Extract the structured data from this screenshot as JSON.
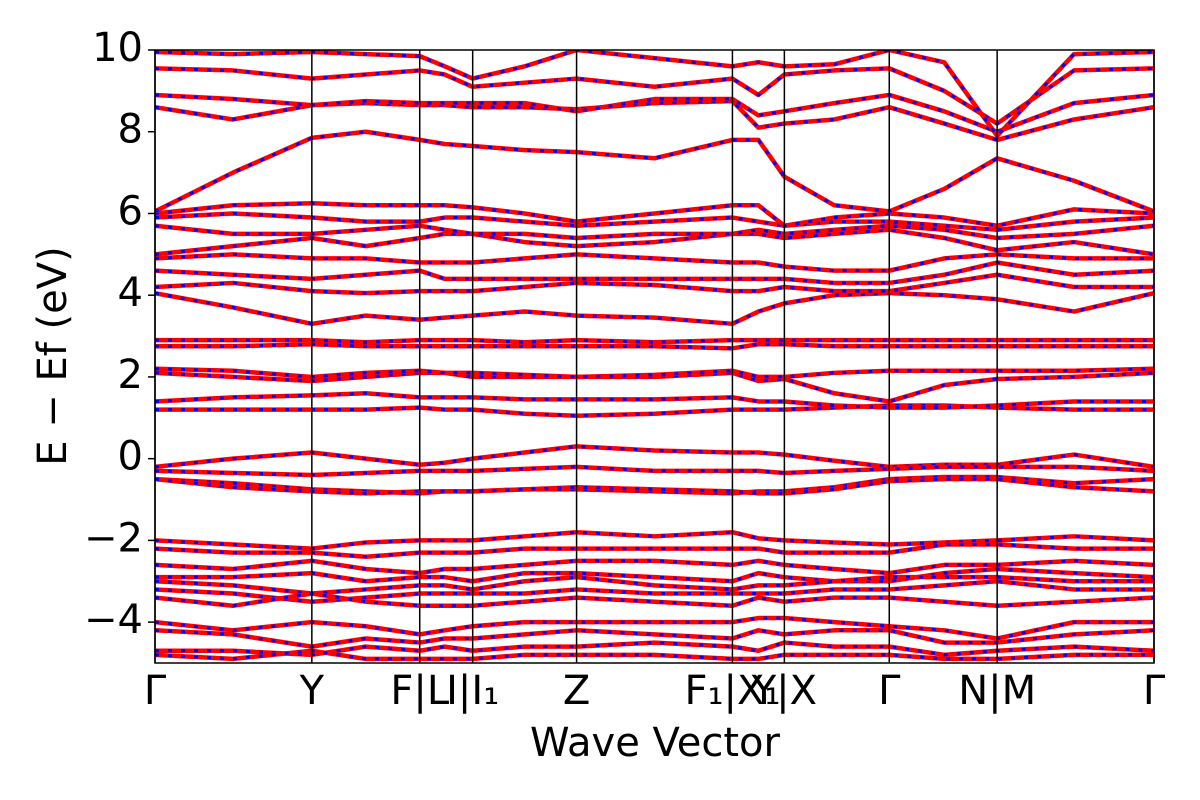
{
  "chart_data": {
    "type": "line",
    "xlabel": "Wave Vector",
    "ylabel": "E − Ef (eV)",
    "xlim": [
      0,
      1
    ],
    "ylim": [
      -5,
      10
    ],
    "xticks": [
      {
        "value": 0,
        "label": "Γ"
      },
      {
        "value": 0.157,
        "label": "Y"
      },
      {
        "value": 0.265,
        "label": "F|L"
      },
      {
        "value": 0.318,
        "label": "I|I₁"
      },
      {
        "value": 0.422,
        "label": "Z"
      },
      {
        "value": 0.578,
        "label": "F₁|X₁"
      },
      {
        "value": 0.63,
        "label": "Y|X"
      },
      {
        "value": 0.735,
        "label": "Γ"
      },
      {
        "value": 0.843,
        "label": "N|M"
      },
      {
        "value": 1,
        "label": "Γ"
      }
    ],
    "yticks": [
      {
        "value": -4,
        "label": "−4"
      },
      {
        "value": -2,
        "label": "−2"
      },
      0,
      2,
      4,
      6,
      8,
      10
    ],
    "line_color": "#ff0000",
    "overlay_color": "#0000ff",
    "x": [
      0,
      0.078,
      0.157,
      0.211,
      0.265,
      0.29,
      0.318,
      0.37,
      0.422,
      0.5,
      0.578,
      0.604,
      0.63,
      0.68,
      0.735,
      0.79,
      0.843,
      0.92,
      1
    ],
    "series": [
      {
        "values": [
          1.2,
          1.2,
          1.2,
          1.2,
          1.25,
          1.2,
          1.2,
          1.1,
          1.05,
          1.1,
          1.2,
          1.2,
          1.2,
          1.25,
          1.3,
          1.3,
          1.25,
          1.2,
          1.2
        ]
      },
      {
        "values": [
          1.4,
          1.5,
          1.55,
          1.6,
          1.5,
          1.5,
          1.5,
          1.45,
          1.45,
          1.45,
          1.5,
          1.4,
          1.4,
          1.3,
          1.25,
          1.25,
          1.3,
          1.4,
          1.4
        ]
      },
      {
        "values": [
          2.1,
          2,
          1.9,
          2,
          2.1,
          2.1,
          2,
          2,
          2,
          2,
          2.1,
          1.9,
          1.95,
          1.6,
          1.4,
          1.8,
          1.95,
          2,
          2.1
        ]
      },
      {
        "values": [
          2.2,
          2.15,
          2,
          2.1,
          2.15,
          2.1,
          2.1,
          2.05,
          2,
          2.05,
          2.15,
          2,
          2,
          2.1,
          2.15,
          2.15,
          2.15,
          2.15,
          2.2
        ]
      },
      {
        "values": [
          2.75,
          2.75,
          2.8,
          2.75,
          2.75,
          2.75,
          2.75,
          2.75,
          2.75,
          2.75,
          2.7,
          2.8,
          2.8,
          2.75,
          2.75,
          2.75,
          2.75,
          2.75,
          2.75
        ]
      },
      {
        "values": [
          2.9,
          2.9,
          2.9,
          2.85,
          2.9,
          2.9,
          2.9,
          2.85,
          2.9,
          2.85,
          2.9,
          2.9,
          2.9,
          2.9,
          2.9,
          2.9,
          2.9,
          2.9,
          2.9
        ]
      },
      {
        "values": [
          4.05,
          3.7,
          3.3,
          3.5,
          3.4,
          3.45,
          3.5,
          3.6,
          3.5,
          3.45,
          3.3,
          3.6,
          3.8,
          4,
          4.05,
          4,
          3.9,
          3.6,
          4.05
        ]
      },
      {
        "values": [
          4.2,
          4.3,
          4.1,
          4.05,
          4.1,
          4.1,
          4.1,
          4.2,
          4.3,
          4.25,
          4.1,
          4.1,
          4.2,
          4.1,
          4.1,
          4.3,
          4.5,
          4.2,
          4.2
        ]
      },
      {
        "values": [
          4.6,
          4.5,
          4.4,
          4.5,
          4.6,
          4.4,
          4.4,
          4.4,
          4.4,
          4.4,
          4.4,
          4.4,
          4.4,
          4.3,
          4.3,
          4.5,
          4.8,
          4.5,
          4.6
        ]
      },
      {
        "values": [
          4.9,
          5,
          4.9,
          4.9,
          4.8,
          4.8,
          4.8,
          4.9,
          5,
          4.9,
          4.8,
          4.8,
          4.7,
          4.6,
          4.6,
          4.9,
          5,
          4.9,
          4.9
        ]
      },
      {
        "values": [
          5,
          5.2,
          5.4,
          5.2,
          5.4,
          5.5,
          5.5,
          5.3,
          5.2,
          5.3,
          5.5,
          5.5,
          5.4,
          5.5,
          5.6,
          5.4,
          5.1,
          5.3,
          5
        ]
      },
      {
        "values": [
          5.7,
          5.5,
          5.5,
          5.6,
          5.7,
          5.6,
          5.5,
          5.5,
          5.4,
          5.5,
          5.5,
          5.6,
          5.5,
          5.6,
          5.7,
          5.6,
          5.4,
          5.5,
          5.7
        ]
      },
      {
        "values": [
          5.9,
          6,
          5.9,
          5.8,
          5.8,
          5.9,
          5.9,
          5.8,
          5.7,
          5.8,
          5.9,
          5.8,
          5.7,
          5.8,
          5.8,
          5.7,
          5.6,
          5.8,
          5.9
        ]
      },
      {
        "values": [
          6,
          6.2,
          6.25,
          6.2,
          6.2,
          6.2,
          6.15,
          6,
          5.8,
          6,
          6.2,
          6.2,
          5.7,
          5.9,
          6,
          5.9,
          5.7,
          6.1,
          6
        ]
      },
      {
        "values": [
          6.05,
          7,
          7.85,
          8,
          7.8,
          7.7,
          7.65,
          7.55,
          7.5,
          7.35,
          7.8,
          7.8,
          6.9,
          6.2,
          6.05,
          6.6,
          7.35,
          6.8,
          6.05
        ]
      },
      {
        "values": [
          8.6,
          8.3,
          8.65,
          8.7,
          8.65,
          8.65,
          8.6,
          8.6,
          8.55,
          8.7,
          8.75,
          8.1,
          8.2,
          8.3,
          8.6,
          8.2,
          7.8,
          8.3,
          8.6
        ]
      },
      {
        "values": [
          8.9,
          8.8,
          8.65,
          8.75,
          8.7,
          8.7,
          8.7,
          8.7,
          8.5,
          8.8,
          8.8,
          8.4,
          8.5,
          8.7,
          8.9,
          8.5,
          8,
          8.7,
          8.9
        ]
      },
      {
        "values": [
          9.55,
          9.5,
          9.3,
          9.4,
          9.5,
          9.4,
          9.1,
          9.2,
          9.3,
          9.1,
          9.3,
          8.9,
          9.4,
          9.5,
          9.55,
          9,
          8.2,
          9.5,
          9.55
        ]
      },
      {
        "values": [
          9.95,
          9.9,
          9.95,
          9.9,
          9.85,
          9.6,
          9.3,
          9.6,
          10,
          9.8,
          9.6,
          9.7,
          9.6,
          9.65,
          10,
          9.7,
          7.9,
          9.9,
          9.95
        ]
      },
      {
        "values": [
          -0.2,
          0,
          0.15,
          0,
          -0.15,
          -0.1,
          0,
          0.15,
          0.3,
          0.2,
          0.15,
          0.15,
          0.1,
          -0.05,
          -0.2,
          -0.15,
          -0.15,
          0.1,
          -0.2
        ]
      },
      {
        "values": [
          -0.3,
          -0.35,
          -0.4,
          -0.35,
          -0.3,
          -0.3,
          -0.3,
          -0.25,
          -0.2,
          -0.3,
          -0.3,
          -0.3,
          -0.35,
          -0.3,
          -0.25,
          -0.2,
          -0.2,
          -0.2,
          -0.3
        ]
      },
      {
        "values": [
          -0.5,
          -0.6,
          -0.75,
          -0.8,
          -0.85,
          -0.8,
          -0.8,
          -0.75,
          -0.75,
          -0.8,
          -0.85,
          -0.8,
          -0.8,
          -0.7,
          -0.5,
          -0.45,
          -0.45,
          -0.6,
          -0.5
        ]
      },
      {
        "values": [
          -0.5,
          -0.7,
          -0.8,
          -0.85,
          -0.8,
          -0.8,
          -0.8,
          -0.75,
          -0.7,
          -0.75,
          -0.8,
          -0.85,
          -0.85,
          -0.75,
          -0.55,
          -0.5,
          -0.5,
          -0.7,
          -0.8
        ]
      },
      {
        "values": [
          -2,
          -2.1,
          -2.2,
          -2.05,
          -2,
          -2,
          -2,
          -1.9,
          -1.8,
          -1.9,
          -1.8,
          -1.95,
          -2,
          -2.05,
          -2.1,
          -2.05,
          -2,
          -1.9,
          -2
        ]
      },
      {
        "values": [
          -2.2,
          -2.3,
          -2.3,
          -2.4,
          -2.3,
          -2.3,
          -2.3,
          -2.2,
          -2.2,
          -2.2,
          -2.2,
          -2.2,
          -2.3,
          -2.3,
          -2.3,
          -2.1,
          -2.1,
          -2.2,
          -2.2
        ]
      },
      {
        "values": [
          -2.6,
          -2.7,
          -2.5,
          -2.7,
          -2.8,
          -2.7,
          -2.7,
          -2.6,
          -2.5,
          -2.5,
          -2.6,
          -2.5,
          -2.6,
          -2.7,
          -2.8,
          -2.6,
          -2.6,
          -2.5,
          -2.6
        ]
      },
      {
        "values": [
          -2.9,
          -2.9,
          -2.8,
          -3,
          -2.9,
          -2.9,
          -3,
          -2.8,
          -2.8,
          -2.9,
          -3,
          -2.8,
          -2.9,
          -3,
          -3,
          -2.8,
          -2.7,
          -2.8,
          -2.9
        ]
      },
      {
        "values": [
          -3,
          -3.1,
          -3.3,
          -3.2,
          -3.1,
          -3.1,
          -3.2,
          -3,
          -2.9,
          -3.1,
          -3.2,
          -3.1,
          -3.1,
          -3,
          -2.9,
          -2.9,
          -2.9,
          -3,
          -3
        ]
      },
      {
        "values": [
          -3.2,
          -3.3,
          -3.5,
          -3.4,
          -3.3,
          -3.3,
          -3.3,
          -3.3,
          -3.2,
          -3.3,
          -3.3,
          -3.3,
          -3.3,
          -3.2,
          -3.2,
          -3.1,
          -3,
          -3.2,
          -3.2
        ]
      },
      {
        "values": [
          -3.4,
          -3.6,
          -3.3,
          -3.5,
          -3.6,
          -3.6,
          -3.6,
          -3.5,
          -3.4,
          -3.5,
          -3.6,
          -3.4,
          -3.5,
          -3.4,
          -3.4,
          -3.5,
          -3.6,
          -3.5,
          -3.4
        ]
      },
      {
        "values": [
          -4,
          -4.2,
          -4,
          -4.1,
          -4.3,
          -4.2,
          -4.1,
          -4,
          -4,
          -4,
          -4,
          -3.9,
          -3.9,
          -4,
          -4.1,
          -4.2,
          -4.4,
          -4,
          -4
        ]
      },
      {
        "values": [
          -4.2,
          -4.3,
          -4.6,
          -4.4,
          -4.5,
          -4.4,
          -4.4,
          -4.3,
          -4.2,
          -4.3,
          -4.4,
          -4.2,
          -4.3,
          -4.2,
          -4.2,
          -4.5,
          -4.5,
          -4.3,
          -4.2
        ]
      },
      {
        "values": [
          -4.7,
          -4.7,
          -4.8,
          -4.6,
          -4.7,
          -4.6,
          -4.7,
          -4.6,
          -4.6,
          -4.5,
          -4.6,
          -4.7,
          -4.5,
          -4.6,
          -4.6,
          -4.8,
          -4.7,
          -4.6,
          -4.7
        ]
      },
      {
        "values": [
          -4.8,
          -4.9,
          -4.7,
          -4.9,
          -4.9,
          -4.9,
          -4.9,
          -4.8,
          -4.8,
          -4.8,
          -4.9,
          -4.9,
          -4.8,
          -4.8,
          -4.8,
          -4.9,
          -4.9,
          -4.8,
          -4.8
        ]
      }
    ]
  }
}
